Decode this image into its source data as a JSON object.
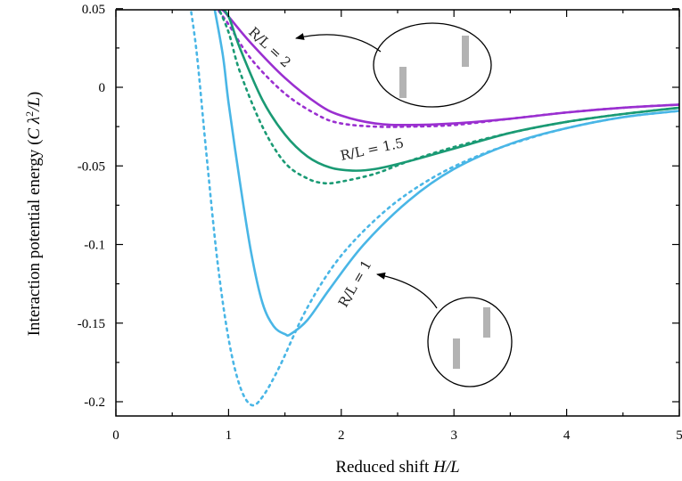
{
  "chart_data": {
    "type": "line",
    "title": "",
    "xlabel": "Reduced shift H/L",
    "ylabel": "Interaction potential energy (C λ²/L)",
    "xlim": [
      0,
      5
    ],
    "ylim": [
      -0.21,
      0.05
    ],
    "xticks": [
      "0",
      "1",
      "2",
      "3",
      "4",
      "5"
    ],
    "yticks": [
      "0.05",
      "0",
      "-0.05",
      "-0.1",
      "-0.15",
      "-0.2"
    ],
    "grid": false,
    "legend": "none",
    "series": [
      {
        "color": "#9a2fd0",
        "style": "solid",
        "x": [
          0.88,
          0.95,
          1.0,
          1.2,
          1.5,
          1.8,
          2.0,
          2.3,
          2.6,
          3.0,
          3.5,
          4.0,
          4.5,
          5.0
        ],
        "y": [
          0.052,
          0.049,
          0.045,
          0.028,
          0.006,
          -0.011,
          -0.018,
          -0.023,
          -0.024,
          -0.023,
          -0.02,
          -0.016,
          -0.013,
          -0.011
        ]
      },
      {
        "color": "#9a2fd0",
        "style": "dotted",
        "x": [
          0.88,
          0.95,
          1.0,
          1.2,
          1.5,
          1.8,
          2.0,
          2.3,
          2.6,
          3.0,
          3.5,
          4.0,
          4.5,
          5.0
        ],
        "y": [
          0.052,
          0.045,
          0.04,
          0.018,
          -0.004,
          -0.018,
          -0.023,
          -0.025,
          -0.025,
          -0.024,
          -0.02,
          -0.016,
          -0.013,
          -0.011
        ]
      },
      {
        "color": "#1a9a74",
        "style": "solid",
        "x": [
          0.92,
          1.0,
          1.1,
          1.3,
          1.5,
          1.7,
          1.9,
          2.1,
          2.3,
          2.6,
          3.0,
          3.5,
          4.0,
          4.5,
          5.0
        ],
        "y": [
          0.052,
          0.045,
          0.025,
          -0.008,
          -0.03,
          -0.044,
          -0.051,
          -0.053,
          -0.052,
          -0.047,
          -0.039,
          -0.029,
          -0.022,
          -0.017,
          -0.013
        ]
      },
      {
        "color": "#1a9a74",
        "style": "dotted",
        "x": [
          0.9,
          1.0,
          1.1,
          1.3,
          1.5,
          1.7,
          1.85,
          2.0,
          2.3,
          2.6,
          3.0,
          3.5,
          4.0,
          4.5,
          5.0
        ],
        "y": [
          0.052,
          0.035,
          0.01,
          -0.025,
          -0.048,
          -0.058,
          -0.061,
          -0.06,
          -0.055,
          -0.047,
          -0.038,
          -0.029,
          -0.022,
          -0.017,
          -0.013
        ]
      },
      {
        "color": "#49b6e6",
        "style": "solid",
        "x": [
          0.87,
          0.95,
          1.0,
          1.1,
          1.2,
          1.3,
          1.4,
          1.5,
          1.55,
          1.7,
          1.9,
          2.2,
          2.6,
          3.0,
          3.5,
          4.0,
          4.5,
          5.0
        ],
        "y": [
          0.052,
          0.02,
          -0.01,
          -0.06,
          -0.105,
          -0.137,
          -0.152,
          -0.157,
          -0.157,
          -0.148,
          -0.128,
          -0.1,
          -0.072,
          -0.052,
          -0.036,
          -0.026,
          -0.019,
          -0.015
        ]
      },
      {
        "color": "#49b6e6",
        "style": "dotted",
        "x": [
          0.66,
          0.72,
          0.8,
          0.9,
          1.0,
          1.1,
          1.2,
          1.3,
          1.45,
          1.7,
          2.0,
          2.4,
          2.8,
          3.2,
          3.6,
          4.0,
          4.5,
          5.0
        ],
        "y": [
          0.052,
          0.02,
          -0.04,
          -0.11,
          -0.16,
          -0.19,
          -0.202,
          -0.197,
          -0.178,
          -0.14,
          -0.107,
          -0.078,
          -0.058,
          -0.044,
          -0.034,
          -0.026,
          -0.019,
          -0.015
        ]
      }
    ],
    "annotations": [
      "R/L = 2",
      "R/L = 1.5",
      "R/L = 1"
    ]
  }
}
